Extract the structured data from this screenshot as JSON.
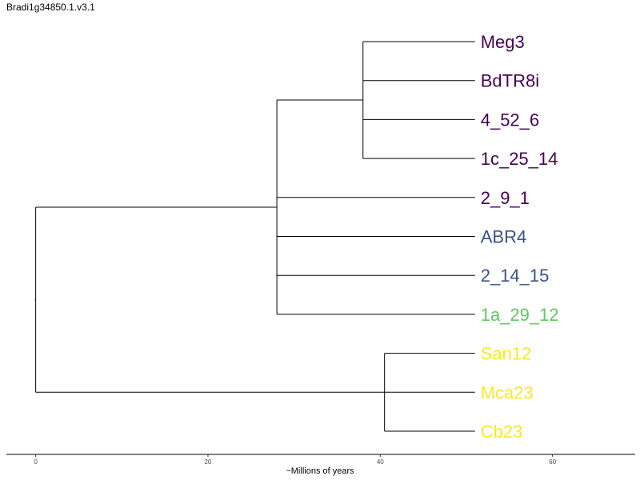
{
  "title": "Bradi1g34850.1.v3.1",
  "chart_data": {
    "type": "dendrogram",
    "title": "Bradi1g34850.1.v3.1",
    "xlabel": "~Millions of years",
    "ylabel": "",
    "xlim": [
      -3.4,
      69.6
    ],
    "xticks": [
      0,
      20,
      40,
      60
    ],
    "grid": false,
    "legend": "none",
    "leaves": [
      {
        "name": "Meg3",
        "color": "#440154"
      },
      {
        "name": "BdTR8i",
        "color": "#440154"
      },
      {
        "name": "4_52_6",
        "color": "#440154"
      },
      {
        "name": "1c_25_14",
        "color": "#440154"
      },
      {
        "name": "2_9_1",
        "color": "#440154"
      },
      {
        "name": "ABR4",
        "color": "#3b528b"
      },
      {
        "name": "2_14_15",
        "color": "#3b528b"
      },
      {
        "name": "1a_29_12",
        "color": "#5ec962"
      },
      {
        "name": "San12",
        "color": "#fde725"
      },
      {
        "name": "Mca23",
        "color": "#fde725"
      },
      {
        "name": "Cb23",
        "color": "#fde725"
      }
    ],
    "tip_x": 51,
    "nodes": [
      {
        "id": "n1",
        "x": 38,
        "children": [
          "Meg3",
          "BdTR8i",
          "4_52_6",
          "1c_25_14"
        ]
      },
      {
        "id": "n2",
        "x": 28,
        "children": [
          "n1",
          "2_9_1",
          "ABR4",
          "2_14_15",
          "1a_29_12"
        ]
      },
      {
        "id": "n3",
        "x": 40.5,
        "children": [
          "San12",
          "Mca23",
          "Cb23"
        ]
      },
      {
        "id": "root",
        "x": 0,
        "children": [
          "n2",
          "n3"
        ]
      }
    ]
  }
}
